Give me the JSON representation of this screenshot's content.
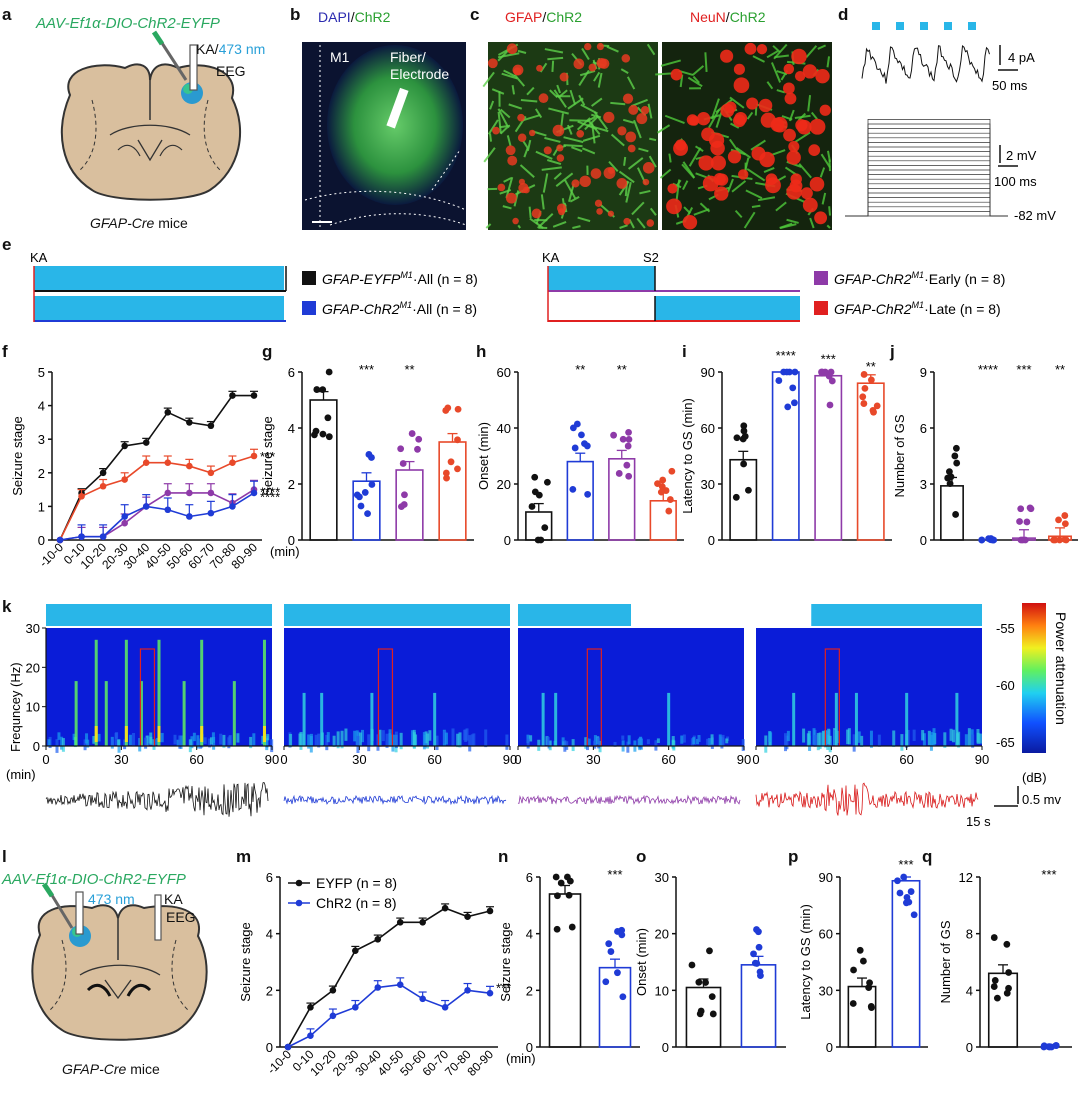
{
  "panel_letters": [
    "a",
    "b",
    "c",
    "d",
    "e",
    "f",
    "g",
    "h",
    "i",
    "j",
    "k",
    "l",
    "m",
    "n",
    "o",
    "p",
    "q"
  ],
  "panel_a": {
    "virus": "AAV-Ef1α-DIO-ChR2-EYFP",
    "ka": "KA/",
    "light": "473 nm",
    "eeg": "EEG",
    "mouse": "GFAP-Cre",
    "mouse_suffix": " mice"
  },
  "panel_b": {
    "dapi": "DAPI",
    "slash": "/",
    "chr2": "ChR2",
    "region": "M1",
    "fiber1": "Fiber/",
    "fiber2": "Electrode"
  },
  "panel_c": {
    "left_red": "GFAP",
    "left_green": "ChR2",
    "right_red": "NeuN",
    "right_green": "ChR2",
    "slash": "/"
  },
  "panel_d": {
    "scale1_y": "4 pA",
    "scale1_x": "50 ms",
    "scale2_y": "2 mV",
    "scale2_x": "100 ms",
    "rest": "-82 mV"
  },
  "panel_e": {
    "ka": "KA",
    "s2": "S2",
    "legend": [
      {
        "text": "GFAP-EYFP",
        "sup": "M1",
        "rest": "·All (n = 8)",
        "color": "#111111"
      },
      {
        "text": "GFAP-ChR2",
        "sup": "M1",
        "rest": "·All (n = 8)",
        "color": "#1f3bd6"
      },
      {
        "text": "GFAP-ChR2",
        "sup": "M1",
        "rest": "·Early (n = 8)",
        "color": "#8e3aa8"
      },
      {
        "text": "GFAP-ChR2",
        "sup": "M1",
        "rest": "·Late (n = 8)",
        "color": "#e02020"
      }
    ],
    "light_color": "#29b6e8"
  },
  "colors": {
    "eyfp": "#111111",
    "chr2_all": "#1f3bd6",
    "early": "#8e3aa8",
    "late": "#e8492a",
    "light": "#29b6e8"
  },
  "panel_k": {
    "ylabel": "Frequncey (Hz)",
    "xunit": "(min)",
    "cbar_label": "Power attenuation",
    "cbar_unit": "(dB)",
    "cbar_ticks": [
      "-55",
      "-60",
      "-65"
    ],
    "yticks": [
      "30",
      "20",
      "10",
      "0"
    ],
    "xticks": [
      "0",
      "30",
      "60",
      "90"
    ],
    "scale_v": "0.5 mv",
    "scale_t": "15 s"
  },
  "panel_l": {
    "virus": "AAV-Ef1α-DIO-ChR2-EYFP",
    "light": "473 nm",
    "ka": "KA",
    "eeg": "EEG",
    "mouse": "GFAP-Cre",
    "mouse_suffix": " mice"
  },
  "chart_data": [
    {
      "panel": "f",
      "type": "line",
      "ylabel": "Seizure stage",
      "xlabel": "(min)",
      "categories": [
        "-10-0",
        "0-10",
        "10-20",
        "20-30",
        "30-40",
        "40-50",
        "50-60",
        "60-70",
        "70-80",
        "80-90"
      ],
      "ylim": [
        0,
        5
      ],
      "yticks": [
        "0",
        "1",
        "2",
        "3",
        "4",
        "5"
      ],
      "series": [
        {
          "color": "#111111",
          "values": [
            0,
            1.4,
            2.0,
            2.8,
            2.9,
            3.8,
            3.5,
            3.4,
            4.3,
            4.3
          ]
        },
        {
          "color": "#e8492a",
          "values": [
            0,
            1.3,
            1.6,
            1.8,
            2.3,
            2.3,
            2.2,
            2.0,
            2.3,
            2.5
          ]
        },
        {
          "color": "#8e3aa8",
          "values": [
            0,
            0.1,
            0.1,
            0.5,
            1.0,
            1.4,
            1.4,
            1.4,
            1.1,
            1.5
          ]
        },
        {
          "color": "#1f3bd6",
          "values": [
            0,
            0.1,
            0.1,
            0.7,
            1.0,
            0.9,
            0.7,
            0.8,
            1.0,
            1.4
          ]
        }
      ],
      "annotations": [
        "***",
        "****",
        "****"
      ]
    },
    {
      "panel": "g",
      "type": "bar",
      "ylabel": "Seizure stage",
      "ylim": [
        0,
        6
      ],
      "yticks": [
        "0",
        "2",
        "4",
        "6"
      ],
      "values": [
        5.0,
        2.1,
        2.5,
        3.5
      ],
      "annotations": [
        "",
        "***",
        "**",
        ""
      ]
    },
    {
      "panel": "h",
      "type": "bar",
      "ylabel": "Onset (min)",
      "ylim": [
        0,
        60
      ],
      "yticks": [
        "0",
        "20",
        "40",
        "60"
      ],
      "values": [
        10,
        28,
        29,
        14
      ],
      "annotations": [
        "",
        "**",
        "**",
        ""
      ]
    },
    {
      "panel": "i",
      "type": "bar",
      "ylabel": "Latency to GS (min)",
      "ylim": [
        0,
        90
      ],
      "yticks": [
        "0",
        "30",
        "60",
        "90"
      ],
      "values": [
        43,
        90,
        88,
        84
      ],
      "annotations": [
        "",
        "****",
        "***",
        "**"
      ]
    },
    {
      "panel": "j",
      "type": "bar",
      "ylabel": "Number of GS",
      "ylim": [
        0,
        9
      ],
      "yticks": [
        "0",
        "3",
        "6",
        "9"
      ],
      "values": [
        2.9,
        0,
        0.1,
        0.2
      ],
      "annotations": [
        "",
        "****",
        "***",
        "**"
      ]
    },
    {
      "panel": "m",
      "type": "line",
      "ylabel": "Seizure stage",
      "xlabel": "(min)",
      "categories": [
        "-10-0",
        "0-10",
        "10-20",
        "20-30",
        "30-40",
        "40-50",
        "50-60",
        "60-70",
        "70-80",
        "80-90"
      ],
      "ylim": [
        0,
        6
      ],
      "yticks": [
        "0",
        "2",
        "4",
        "6"
      ],
      "legend": [
        {
          "name": "EYFP (n = 8)",
          "color": "#111111"
        },
        {
          "name": "ChR2 (n = 8)",
          "color": "#1f3bd6"
        }
      ],
      "series": [
        {
          "name": "EYFP (n = 8)",
          "color": "#111111",
          "values": [
            0,
            1.4,
            2.0,
            3.4,
            3.8,
            4.4,
            4.4,
            4.9,
            4.6,
            4.8
          ]
        },
        {
          "name": "ChR2 (n = 8)",
          "color": "#1f3bd6",
          "values": [
            0,
            0.4,
            1.1,
            1.4,
            2.1,
            2.2,
            1.7,
            1.4,
            2.0,
            1.9
          ]
        }
      ],
      "annotations": [
        "***"
      ]
    },
    {
      "panel": "n",
      "type": "bar",
      "ylabel": "Seizure stage",
      "ylim": [
        0,
        6
      ],
      "yticks": [
        "0",
        "2",
        "4",
        "6"
      ],
      "values": [
        5.4,
        2.8
      ],
      "annotations": [
        "",
        "***"
      ]
    },
    {
      "panel": "o",
      "type": "bar",
      "ylabel": "Onset (min)",
      "ylim": [
        0,
        30
      ],
      "yticks": [
        "0",
        "10",
        "20",
        "30"
      ],
      "values": [
        10.5,
        14.5
      ],
      "annotations": [
        "",
        ""
      ]
    },
    {
      "panel": "p",
      "type": "bar",
      "ylabel": "Latency to GS (min)",
      "ylim": [
        0,
        90
      ],
      "yticks": [
        "0",
        "30",
        "60",
        "90"
      ],
      "values": [
        32,
        88
      ],
      "annotations": [
        "",
        "***"
      ]
    },
    {
      "panel": "q",
      "type": "bar",
      "ylabel": "Number of GS",
      "ylim": [
        0,
        12
      ],
      "yticks": [
        "0",
        "4",
        "8",
        "12"
      ],
      "values": [
        5.2,
        0
      ],
      "annotations": [
        "",
        "***"
      ]
    }
  ]
}
